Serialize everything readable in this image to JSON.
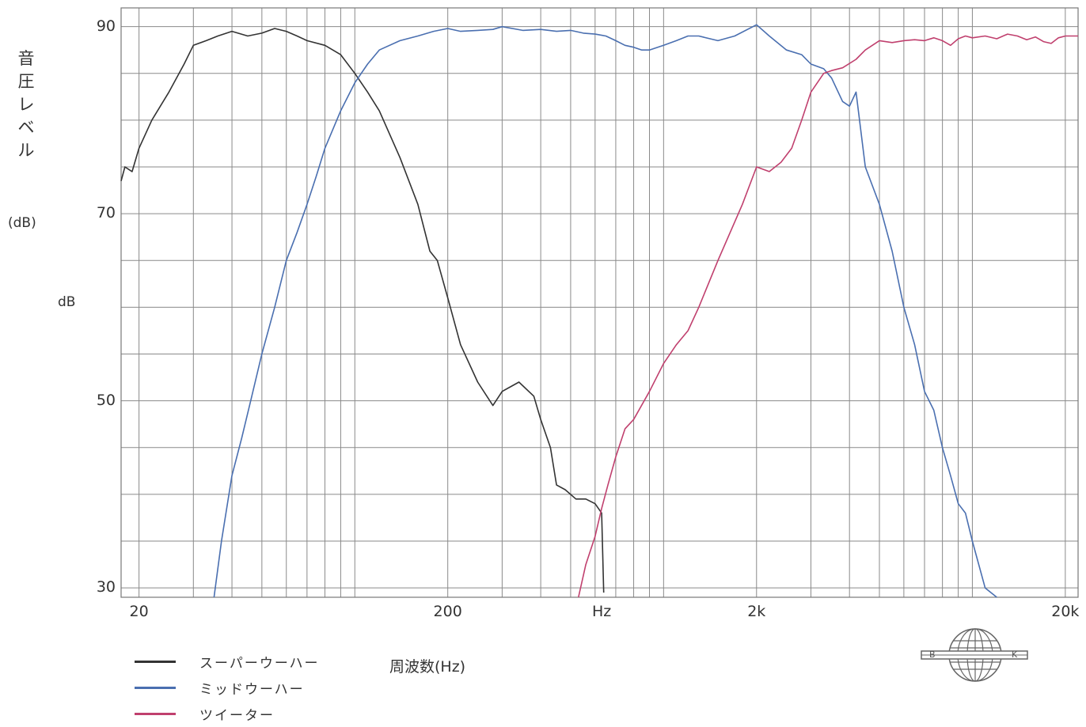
{
  "chart_data": {
    "type": "line",
    "title": "",
    "ylabel_chars": [
      "音",
      "圧",
      "レ",
      "ベ",
      "ル"
    ],
    "ylabel_unit": "(dB)",
    "ylabel_unit2": "dB",
    "xlabel": "周波数(Hz)",
    "x_scale": "log",
    "xlim": [
      17.5,
      22000
    ],
    "ylim": [
      29,
      92
    ],
    "grid": true,
    "ytick_labels": [
      {
        "value": 90,
        "label": "90"
      },
      {
        "value": 70,
        "label": "70"
      },
      {
        "value": 50,
        "label": "50"
      },
      {
        "value": 30,
        "label": "30"
      }
    ],
    "xtick_labels": [
      {
        "value": 20,
        "label": "20"
      },
      {
        "value": 200,
        "label": "200"
      },
      {
        "value": 630,
        "label": "Hz"
      },
      {
        "value": 2000,
        "label": "2k"
      },
      {
        "value": 20000,
        "label": "20k"
      }
    ],
    "legend_position": "bottom-left",
    "series": [
      {
        "name": "スーパーウーハー",
        "color": "#333333",
        "x": [
          17.5,
          18,
          19,
          20,
          22,
          25,
          28,
          30,
          33,
          36,
          40,
          45,
          50,
          55,
          60,
          65,
          70,
          80,
          90,
          100,
          110,
          120,
          140,
          160,
          175,
          185,
          200,
          220,
          250,
          280,
          300,
          340,
          380,
          400,
          430,
          450,
          480,
          520,
          560,
          600,
          630,
          640
        ],
        "y": [
          73.5,
          75,
          74.5,
          77,
          80,
          83,
          86,
          88,
          88.5,
          89,
          89.5,
          89,
          89.3,
          89.8,
          89.5,
          89,
          88.5,
          88,
          87,
          85,
          83,
          81,
          76,
          71,
          66,
          65,
          61,
          56,
          52,
          49.5,
          51,
          52,
          50.5,
          48,
          45,
          41,
          40.5,
          39.5,
          39.5,
          39,
          38,
          29.5
        ]
      },
      {
        "name": "ミッドウーハー",
        "color": "#4a6fb0",
        "x": [
          35,
          37,
          40,
          43,
          46,
          50,
          55,
          60,
          65,
          70,
          75,
          80,
          90,
          100,
          110,
          120,
          140,
          160,
          180,
          200,
          220,
          250,
          280,
          300,
          350,
          400,
          450,
          500,
          550,
          600,
          650,
          700,
          750,
          800,
          850,
          900,
          1000,
          1100,
          1200,
          1300,
          1500,
          1700,
          2000,
          2200,
          2500,
          2800,
          3000,
          3300,
          3500,
          3800,
          4000,
          4200,
          4500,
          5000,
          5500,
          6000,
          6500,
          7000,
          7500,
          8000,
          8500,
          9000,
          9500,
          10000,
          11000,
          12000
        ],
        "y": [
          29,
          35,
          42,
          46,
          50,
          55,
          60,
          65,
          68,
          71,
          74,
          77,
          81,
          84,
          86,
          87.5,
          88.5,
          89,
          89.5,
          89.8,
          89.5,
          89.6,
          89.7,
          90,
          89.6,
          89.7,
          89.5,
          89.6,
          89.3,
          89.2,
          89,
          88.5,
          88,
          87.8,
          87.5,
          87.5,
          88,
          88.5,
          89,
          89,
          88.5,
          89,
          90.2,
          89,
          87.5,
          87,
          86,
          85.5,
          84.5,
          82,
          81.5,
          83,
          75,
          71,
          66,
          60,
          56,
          51,
          49,
          45,
          42,
          39,
          38,
          35,
          30,
          29
        ]
      },
      {
        "name": "ツイーター",
        "color": "#c0406e",
        "x": [
          530,
          560,
          600,
          630,
          660,
          700,
          750,
          800,
          900,
          1000,
          1100,
          1200,
          1300,
          1500,
          1800,
          2000,
          2200,
          2400,
          2600,
          2800,
          3000,
          3300,
          3500,
          3800,
          4200,
          4500,
          5000,
          5500,
          6000,
          6500,
          7000,
          7500,
          8000,
          8500,
          9000,
          9500,
          10000,
          11000,
          12000,
          13000,
          14000,
          15000,
          16000,
          17000,
          18000,
          19000,
          20000,
          21000,
          22000
        ],
        "y": [
          29,
          32.5,
          35.5,
          38.5,
          41,
          44,
          47,
          48,
          51,
          54,
          56,
          57.5,
          60,
          65,
          71,
          75,
          74.5,
          75.5,
          77,
          80,
          83,
          85,
          85.3,
          85.6,
          86.5,
          87.5,
          88.5,
          88.3,
          88.5,
          88.6,
          88.5,
          88.8,
          88.5,
          88,
          88.7,
          89,
          88.8,
          89,
          88.7,
          89.2,
          89,
          88.6,
          88.9,
          88.4,
          88.2,
          88.8,
          89,
          89,
          89
        ]
      }
    ]
  }
}
